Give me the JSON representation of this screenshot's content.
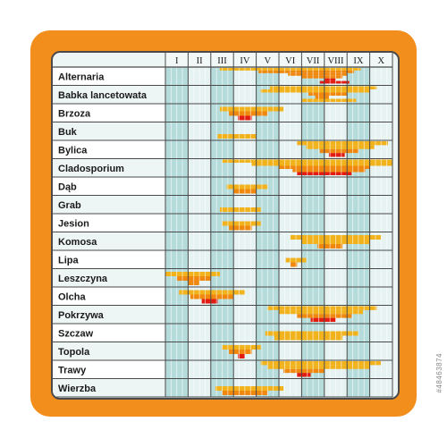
{
  "colors": {
    "frame": "#f28e1c",
    "panel": "#eef6f5",
    "label_row_light": "#ffffff",
    "label_row_alt": "#eef6f5",
    "col_teal": "#b5dcdb",
    "col_light": "#e6f3f2",
    "low": "#f2b21b",
    "mid": "#f0870f",
    "high": "#e21c12"
  },
  "watermark_id": "#48463874",
  "chart_data": {
    "type": "heatmap",
    "title": "",
    "months": [
      "I",
      "II",
      "III",
      "IV",
      "V",
      "VI",
      "VII",
      "VIII",
      "IX",
      "X"
    ],
    "subdivisions_per_month": 4,
    "levels": [
      "low",
      "mid",
      "high"
    ],
    "rows": [
      {
        "label": "Alternaria",
        "ranges": [
          [
            2.4,
            8.6,
            0
          ],
          [
            4.1,
            8.3,
            1
          ],
          [
            5.4,
            8.0,
            1
          ],
          [
            6.0,
            7.8,
            1
          ],
          [
            7.0,
            7.5,
            2
          ],
          [
            6.8,
            8.1,
            2
          ]
        ]
      },
      {
        "label": "Babka lancetowata",
        "ranges": [
          [
            4.6,
            9.3,
            0
          ],
          [
            4.2,
            9.0,
            0
          ],
          [
            6.3,
            8.0,
            1
          ],
          [
            6.6,
            7.2,
            1
          ],
          [
            6.0,
            8.4,
            0
          ]
        ]
      },
      {
        "label": "Brzoza",
        "ranges": [
          [
            2.4,
            5.2,
            0
          ],
          [
            2.8,
            4.5,
            1
          ],
          [
            3.2,
            3.8,
            2
          ]
        ]
      },
      {
        "label": "Buk",
        "ranges": [
          [
            2.3,
            4.0,
            0
          ]
        ]
      },
      {
        "label": "Bylica",
        "ranges": [
          [
            5.8,
            9.8,
            0
          ],
          [
            6.2,
            9.2,
            0
          ],
          [
            6.8,
            8.5,
            1
          ],
          [
            7.2,
            7.9,
            2
          ]
        ]
      },
      {
        "label": "Cladosporium",
        "ranges": [
          [
            2.5,
            10.0,
            0
          ],
          [
            3.8,
            10.0,
            0
          ],
          [
            5.0,
            9.0,
            1
          ],
          [
            5.6,
            8.8,
            1
          ],
          [
            5.8,
            8.2,
            2
          ]
        ]
      },
      {
        "label": "Dąb",
        "ranges": [
          [
            2.7,
            4.5,
            0
          ],
          [
            3.0,
            4.0,
            1
          ]
        ]
      },
      {
        "label": "Grab",
        "ranges": [
          [
            2.4,
            4.2,
            0
          ]
        ]
      },
      {
        "label": "Jesion",
        "ranges": [
          [
            2.5,
            4.2,
            0
          ],
          [
            2.8,
            3.8,
            1
          ]
        ]
      },
      {
        "label": "Komosa",
        "ranges": [
          [
            5.5,
            9.5,
            0
          ],
          [
            6.0,
            9.0,
            0
          ],
          [
            6.7,
            7.8,
            1
          ]
        ]
      },
      {
        "label": "Lipa",
        "ranges": [
          [
            5.3,
            6.2,
            0
          ],
          [
            5.5,
            5.8,
            1
          ]
        ]
      },
      {
        "label": "Leszczyna",
        "ranges": [
          [
            0.0,
            2.4,
            0
          ],
          [
            0.5,
            2.0,
            1
          ],
          [
            1.0,
            1.5,
            1
          ]
        ]
      },
      {
        "label": "Olcha",
        "ranges": [
          [
            0.6,
            3.5,
            0
          ],
          [
            1.1,
            3.0,
            1
          ],
          [
            1.6,
            2.3,
            2
          ]
        ]
      },
      {
        "label": "Pokrzywa",
        "ranges": [
          [
            4.5,
            9.3,
            0
          ],
          [
            5.0,
            8.7,
            0
          ],
          [
            5.8,
            8.2,
            1
          ],
          [
            6.4,
            7.5,
            2
          ]
        ]
      },
      {
        "label": "Szczaw",
        "ranges": [
          [
            4.4,
            8.5,
            0
          ],
          [
            4.8,
            7.8,
            0
          ]
        ]
      },
      {
        "label": "Topola",
        "ranges": [
          [
            2.5,
            4.2,
            0
          ],
          [
            2.8,
            3.8,
            1
          ],
          [
            3.2,
            3.5,
            2
          ]
        ]
      },
      {
        "label": "Trawy",
        "ranges": [
          [
            4.2,
            9.5,
            0
          ],
          [
            4.5,
            9.0,
            0
          ],
          [
            5.2,
            7.0,
            1
          ],
          [
            5.8,
            6.4,
            2
          ]
        ]
      },
      {
        "label": "Wierzba",
        "ranges": [
          [
            2.2,
            5.2,
            0
          ],
          [
            2.5,
            4.5,
            1
          ]
        ]
      }
    ]
  }
}
